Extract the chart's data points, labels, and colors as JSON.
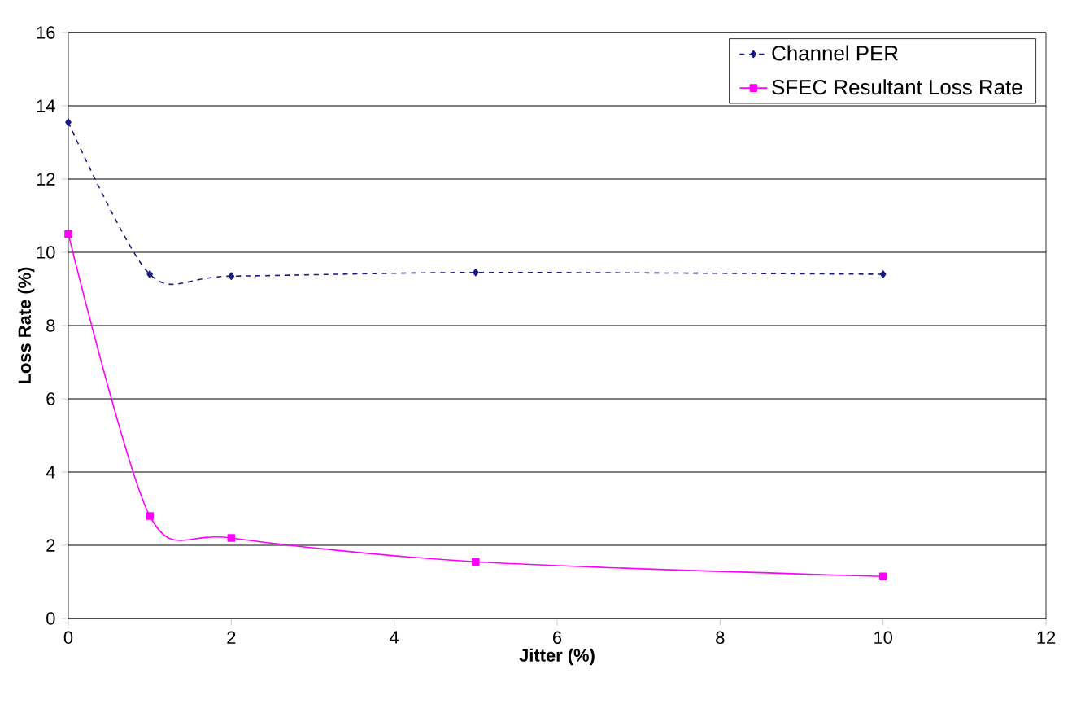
{
  "chart_data": {
    "type": "line",
    "xlabel": "Jitter (%)",
    "ylabel": "Loss Rate (%)",
    "xlim": [
      0,
      12
    ],
    "ylim": [
      0,
      16
    ],
    "xticks": [
      0,
      2,
      4,
      6,
      8,
      10,
      12
    ],
    "yticks": [
      0,
      2,
      4,
      6,
      8,
      10,
      12,
      14,
      16
    ],
    "grid": "y",
    "legend": "top right",
    "series": [
      {
        "name": "Channel PER",
        "color": "#1a1a80",
        "x": [
          0,
          1,
          2,
          5,
          10
        ],
        "values": [
          13.55,
          9.4,
          9.35,
          9.45,
          9.4
        ],
        "marker": "diamond",
        "line_style": "dashed"
      },
      {
        "name": "SFEC Resultant Loss Rate",
        "color": "#ff00ff",
        "x": [
          0,
          1,
          2,
          5,
          10
        ],
        "values": [
          10.5,
          2.8,
          2.2,
          1.55,
          1.15
        ],
        "marker": "square",
        "line_style": "solid"
      }
    ]
  }
}
